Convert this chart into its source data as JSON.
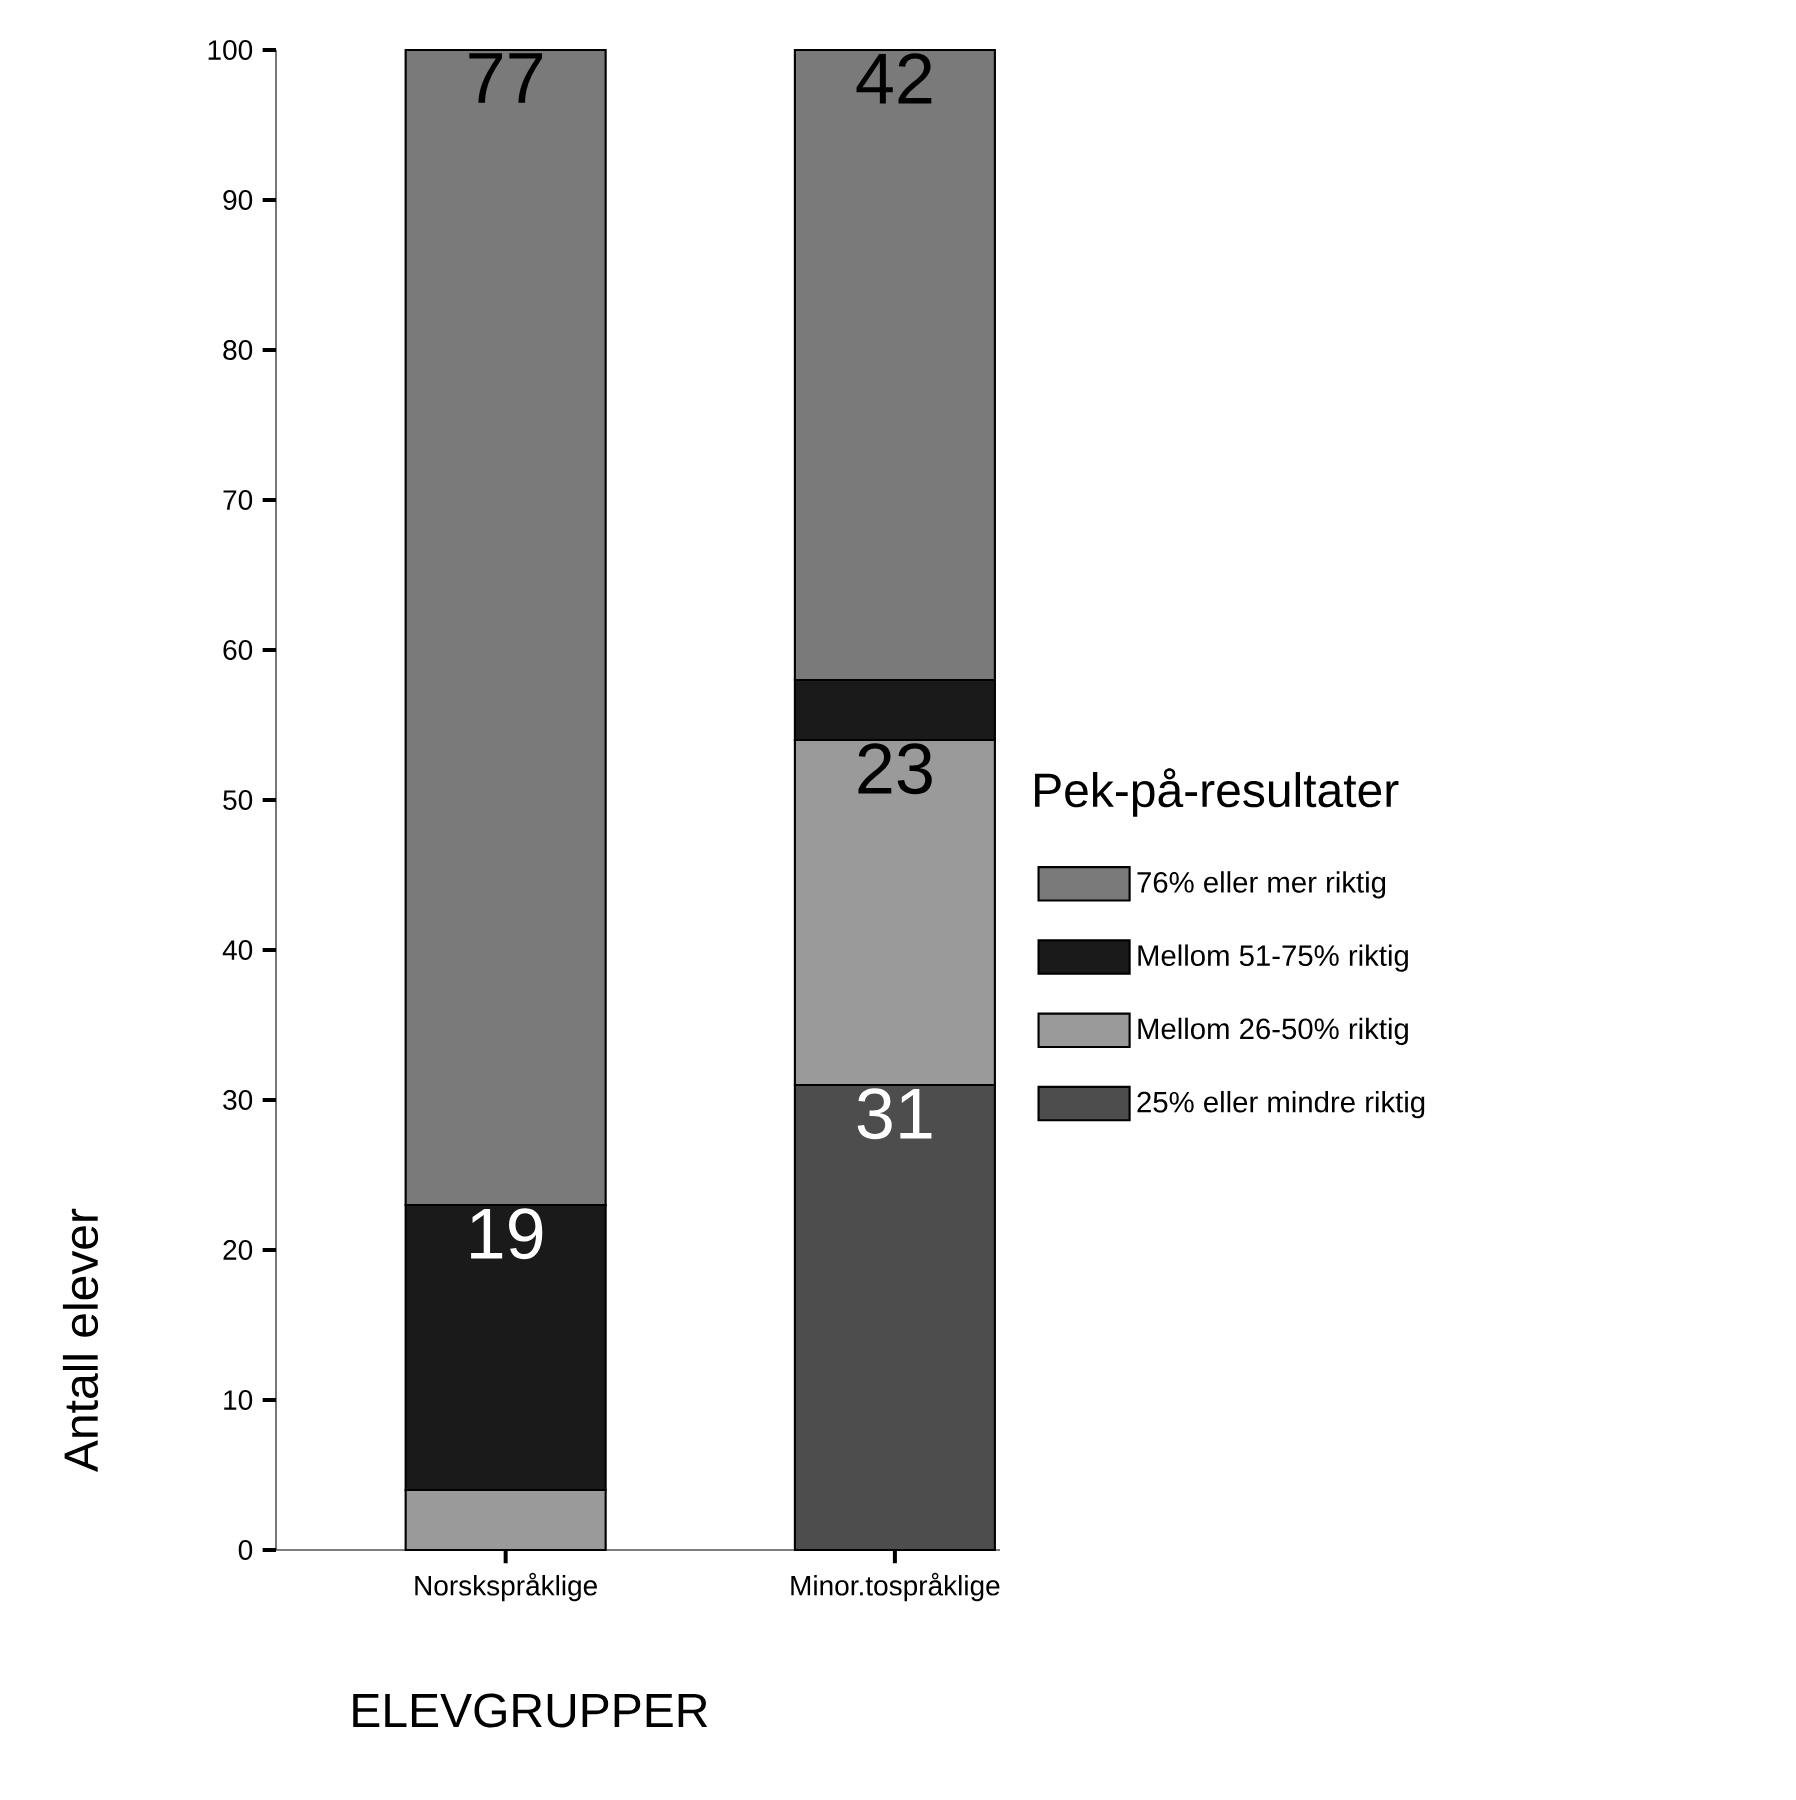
{
  "chart_data": {
    "type": "bar",
    "stacked": true,
    "categories": [
      "Norskspråklige",
      "Minor.tospråklige"
    ],
    "xlabel": "ELEVGRUPPER",
    "ylabel": "Antall elever",
    "legend_title": "Pek-på-resultater",
    "legend": "right",
    "ylim": [
      0,
      100
    ],
    "yticks": [
      0,
      10,
      20,
      30,
      40,
      50,
      60,
      70,
      80,
      90,
      100
    ],
    "series": [
      {
        "name": "25% eller mindre riktig",
        "color": "#4d4d4d",
        "values": [
          0,
          31
        ],
        "value_labels": [
          null,
          "31"
        ]
      },
      {
        "name": "Mellom 26-50% riktig",
        "color": "#9a9a9a",
        "values": [
          4,
          23
        ],
        "value_labels": [
          null,
          "23"
        ]
      },
      {
        "name": "Mellom 51-75% riktig",
        "color": "#1a1a1a",
        "values": [
          19,
          4
        ],
        "value_labels": [
          "19",
          null
        ]
      },
      {
        "name": "76% eller mer riktig",
        "color": "#7a7a7a",
        "values": [
          77,
          42
        ],
        "value_labels": [
          "77",
          "42"
        ]
      }
    ]
  }
}
